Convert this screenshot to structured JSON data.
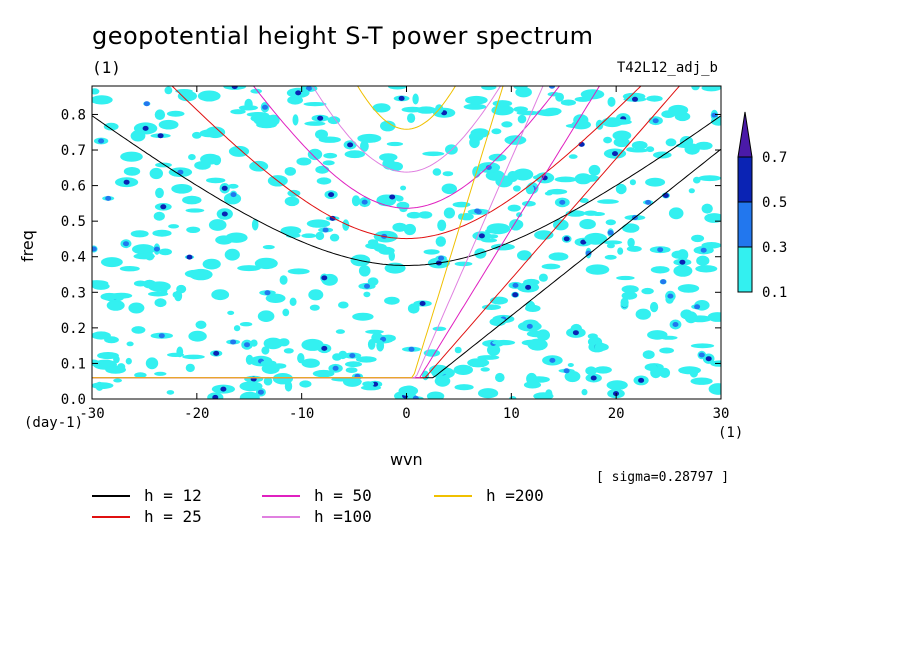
{
  "chart_data": {
    "type": "heatmap",
    "title": "geopotential height S-T power spectrum",
    "units_label": "(1)",
    "run_name": "T42L12_adj_b",
    "xlabel": "wvn",
    "ylabel": "freq",
    "x_unit_left": "(day-1)",
    "x_unit_right": "(1)",
    "xlim": [
      -30,
      30
    ],
    "ylim": [
      0,
      0.88
    ],
    "xticks": [
      -30,
      -20,
      -10,
      0,
      10,
      20,
      30
    ],
    "yticks": [
      0.0,
      0.1,
      0.2,
      0.3,
      0.4,
      0.5,
      0.6,
      0.7,
      0.8
    ],
    "ytick_labels": [
      "0.0",
      "0.1",
      "0.2",
      "0.3",
      "0.4",
      "0.5",
      "0.6",
      "0.7",
      "0.8"
    ],
    "sigma_text": "[ sigma=0.28797 ]",
    "colorbar": {
      "levels": [
        "0.1",
        "0.3",
        "0.5",
        "0.7"
      ],
      "colors": [
        "#33f0f0",
        "#2277ee",
        "#0a23b4",
        "#4a1aa8"
      ]
    },
    "dispersion_curves": [
      {
        "label": "h = 12",
        "h": 12,
        "color": "#000000"
      },
      {
        "label": "h = 25",
        "h": 25,
        "color": "#e01010"
      },
      {
        "label": "h = 50",
        "h": 50,
        "color": "#e020c0"
      },
      {
        "label": "h =100",
        "h": 100,
        "color": "#e080e0"
      },
      {
        "label": "h =200",
        "h": 200,
        "color": "#f0c000"
      }
    ]
  }
}
